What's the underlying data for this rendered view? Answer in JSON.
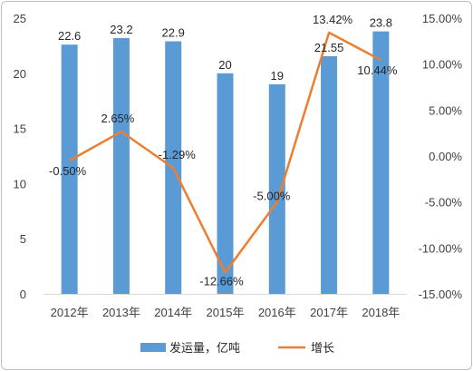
{
  "chart_data": {
    "type": "bar",
    "categories": [
      "2012年",
      "2013年",
      "2014年",
      "2015年",
      "2016年",
      "2017年",
      "2018年"
    ],
    "series": [
      {
        "name": "发运量，亿吨",
        "type": "bar",
        "axis": "left",
        "color": "#5B9BD5",
        "values": [
          22.6,
          23.2,
          22.9,
          20,
          19,
          21.55,
          23.8
        ],
        "labels": [
          "22.6",
          "23.2",
          "22.9",
          "20",
          "19",
          "21.55",
          "23.8"
        ]
      },
      {
        "name": "增长",
        "type": "line",
        "axis": "right",
        "color": "#ED7D31",
        "values": [
          -0.5,
          2.65,
          -1.29,
          -12.66,
          -5.0,
          13.42,
          10.44
        ],
        "labels": [
          "-0.50%",
          "2.65%",
          "-1.29%",
          "-12.66%",
          "-5.00%",
          "13.42%",
          "10.44%"
        ]
      }
    ],
    "y_left": {
      "ylim": [
        0,
        25
      ],
      "ticks": [
        0,
        5,
        10,
        15,
        20,
        25
      ],
      "tick_labels": [
        "0",
        "5",
        "10",
        "15",
        "20",
        "25"
      ]
    },
    "y_right": {
      "ylim": [
        -15,
        15
      ],
      "ticks": [
        -15,
        -10,
        -5,
        0,
        5,
        10,
        15
      ],
      "tick_labels": [
        "-15.00%",
        "-10.00%",
        "-5.00%",
        "0.00%",
        "5.00%",
        "10.00%",
        "15.00%"
      ]
    },
    "grid": false,
    "legend": "bottom"
  }
}
